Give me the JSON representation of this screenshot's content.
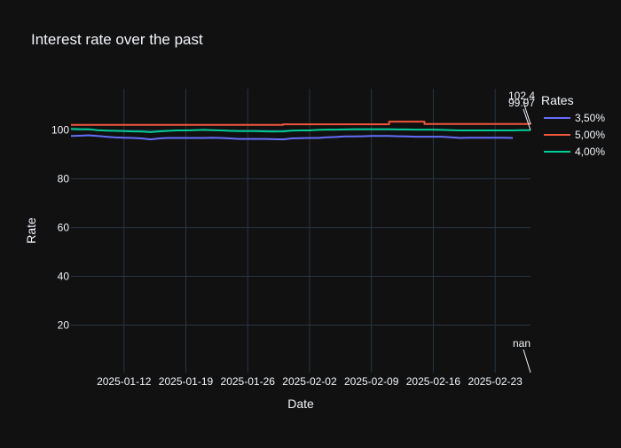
{
  "chart_data": {
    "type": "line",
    "title": "Interest rate over the past",
    "xlabel": "Date",
    "ylabel": "Rate",
    "x_range": [
      "2025-01-06",
      "2025-02-27"
    ],
    "ylim": [
      0.5,
      117
    ],
    "x_ticks": [
      "2025-01-12",
      "2025-01-19",
      "2025-01-26",
      "2025-02-02",
      "2025-02-09",
      "2025-02-16",
      "2025-02-23"
    ],
    "y_ticks": [
      20,
      40,
      60,
      80,
      100
    ],
    "grid": true,
    "legend": {
      "title": "Rates",
      "position": "right"
    },
    "series": [
      {
        "name": "3,50%",
        "color": "#636efa",
        "points": [
          [
            "2025-01-06",
            97.6
          ],
          [
            "2025-01-07",
            97.7
          ],
          [
            "2025-01-08",
            97.9
          ],
          [
            "2025-01-09",
            97.6
          ],
          [
            "2025-01-10",
            97.3
          ],
          [
            "2025-01-11",
            97.0
          ],
          [
            "2025-01-12",
            96.9
          ],
          [
            "2025-01-13",
            96.8
          ],
          [
            "2025-01-14",
            96.6
          ],
          [
            "2025-01-15",
            96.2
          ],
          [
            "2025-01-16",
            96.6
          ],
          [
            "2025-01-17",
            96.8
          ],
          [
            "2025-01-18",
            96.8
          ],
          [
            "2025-01-19",
            96.8
          ],
          [
            "2025-01-20",
            96.8
          ],
          [
            "2025-01-21",
            96.8
          ],
          [
            "2025-01-22",
            96.9
          ],
          [
            "2025-01-23",
            96.8
          ],
          [
            "2025-01-24",
            96.6
          ],
          [
            "2025-01-25",
            96.4
          ],
          [
            "2025-01-26",
            96.4
          ],
          [
            "2025-01-27",
            96.4
          ],
          [
            "2025-01-28",
            96.4
          ],
          [
            "2025-01-29",
            96.3
          ],
          [
            "2025-01-30",
            96.2
          ],
          [
            "2025-01-31",
            96.6
          ],
          [
            "2025-02-01",
            96.7
          ],
          [
            "2025-02-02",
            96.8
          ],
          [
            "2025-02-03",
            96.8
          ],
          [
            "2025-02-04",
            97.1
          ],
          [
            "2025-02-05",
            97.2
          ],
          [
            "2025-02-06",
            97.4
          ],
          [
            "2025-02-07",
            97.4
          ],
          [
            "2025-02-08",
            97.5
          ],
          [
            "2025-02-09",
            97.6
          ],
          [
            "2025-02-10",
            97.6
          ],
          [
            "2025-02-11",
            97.6
          ],
          [
            "2025-02-12",
            97.5
          ],
          [
            "2025-02-13",
            97.4
          ],
          [
            "2025-02-14",
            97.3
          ],
          [
            "2025-02-15",
            97.3
          ],
          [
            "2025-02-16",
            97.3
          ],
          [
            "2025-02-17",
            97.3
          ],
          [
            "2025-02-18",
            97.1
          ],
          [
            "2025-02-19",
            96.8
          ],
          [
            "2025-02-20",
            96.9
          ],
          [
            "2025-02-21",
            96.9
          ],
          [
            "2025-02-22",
            96.9
          ],
          [
            "2025-02-23",
            96.9
          ],
          [
            "2025-02-24",
            96.9
          ],
          [
            "2025-02-25",
            96.8
          ]
        ]
      },
      {
        "name": "5,00%",
        "color": "#ef553b",
        "step": true,
        "points": [
          [
            "2025-01-06",
            102.2
          ],
          [
            "2025-01-30",
            102.4
          ],
          [
            "2025-02-11",
            103.5
          ],
          [
            "2025-02-15",
            102.5
          ],
          [
            "2025-02-27",
            102.4
          ]
        ]
      },
      {
        "name": "4,00%",
        "color": "#00cc96",
        "points": [
          [
            "2025-01-06",
            100.5
          ],
          [
            "2025-01-07",
            100.4
          ],
          [
            "2025-01-08",
            100.4
          ],
          [
            "2025-01-09",
            100.0
          ],
          [
            "2025-01-10",
            99.8
          ],
          [
            "2025-01-11",
            99.7
          ],
          [
            "2025-01-12",
            99.6
          ],
          [
            "2025-01-13",
            99.5
          ],
          [
            "2025-01-14",
            99.4
          ],
          [
            "2025-01-15",
            99.2
          ],
          [
            "2025-01-16",
            99.5
          ],
          [
            "2025-01-17",
            99.7
          ],
          [
            "2025-01-18",
            99.9
          ],
          [
            "2025-01-19",
            99.9
          ],
          [
            "2025-01-20",
            100.0
          ],
          [
            "2025-01-21",
            100.1
          ],
          [
            "2025-01-22",
            100.0
          ],
          [
            "2025-01-23",
            99.9
          ],
          [
            "2025-01-24",
            99.7
          ],
          [
            "2025-01-25",
            99.6
          ],
          [
            "2025-01-26",
            99.6
          ],
          [
            "2025-01-27",
            99.6
          ],
          [
            "2025-01-28",
            99.5
          ],
          [
            "2025-01-29",
            99.4
          ],
          [
            "2025-01-30",
            99.5
          ],
          [
            "2025-01-31",
            99.8
          ],
          [
            "2025-02-01",
            99.9
          ],
          [
            "2025-02-02",
            99.9
          ],
          [
            "2025-02-03",
            100.1
          ],
          [
            "2025-02-04",
            100.2
          ],
          [
            "2025-02-05",
            100.2
          ],
          [
            "2025-02-06",
            100.3
          ],
          [
            "2025-02-07",
            100.4
          ],
          [
            "2025-02-08",
            100.4
          ],
          [
            "2025-02-09",
            100.4
          ],
          [
            "2025-02-10",
            100.4
          ],
          [
            "2025-02-11",
            100.4
          ],
          [
            "2025-02-12",
            100.3
          ],
          [
            "2025-02-13",
            100.3
          ],
          [
            "2025-02-14",
            100.2
          ],
          [
            "2025-02-15",
            100.2
          ],
          [
            "2025-02-16",
            100.2
          ],
          [
            "2025-02-17",
            100.1
          ],
          [
            "2025-02-18",
            100.0
          ],
          [
            "2025-02-19",
            99.9
          ],
          [
            "2025-02-20",
            99.9
          ],
          [
            "2025-02-21",
            99.9
          ],
          [
            "2025-02-22",
            99.9
          ],
          [
            "2025-02-23",
            99.9
          ],
          [
            "2025-02-24",
            99.9
          ],
          [
            "2025-02-25",
            99.9
          ],
          [
            "2025-02-26",
            99.97
          ],
          [
            "2025-02-27",
            99.97
          ]
        ]
      }
    ],
    "annotations": [
      {
        "text": "102.4",
        "point": [
          "2025-02-27",
          102.4
        ]
      },
      {
        "text": "99.97",
        "point": [
          "2025-02-27",
          99.97
        ]
      },
      {
        "text": "nan",
        "point": [
          "2025-02-27",
          0.5
        ]
      }
    ]
  }
}
